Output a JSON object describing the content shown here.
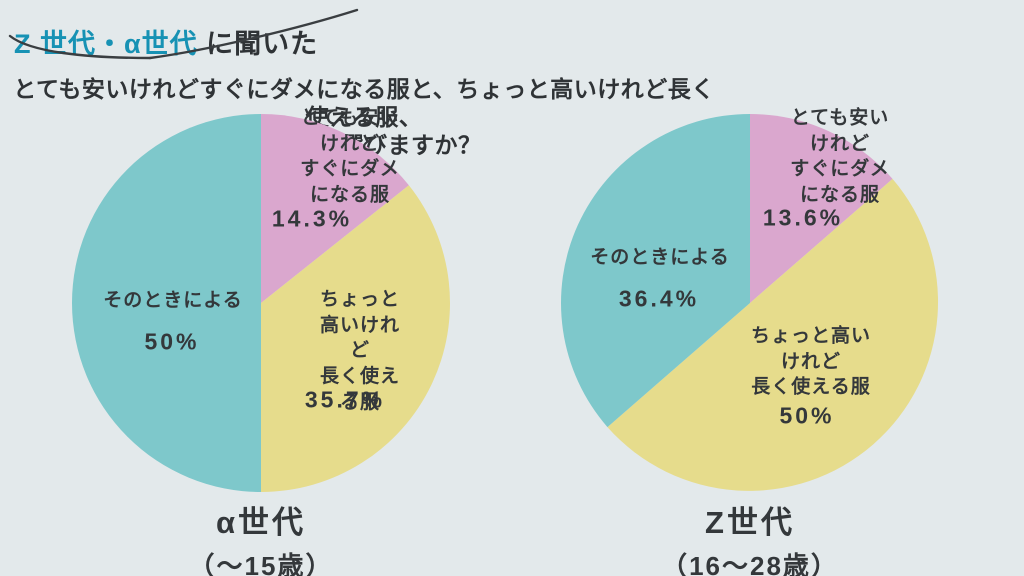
{
  "page": {
    "background_color": "#E3E9EB",
    "text_color": "#2F3336",
    "accent_color": "#1792B4"
  },
  "header": {
    "title_highlight": "Z 世代・α世代",
    "title_suffix": " に聞いた",
    "question_line1": "とても安いけれどすぐにダメになる服と、ちょっと高いけれど長く使える服、",
    "question_line2": "どちらを選びますか？"
  },
  "chart_data": [
    {
      "type": "pie",
      "title": "α世代",
      "subtitle": "（〜15歳）",
      "unit": "%",
      "start_angle": "12 o'clock",
      "direction": "clockwise",
      "slices": [
        {
          "label": "とても安いけれど\nすぐにダメになる服",
          "value": 14.3,
          "value_label": "14.3%",
          "color": "#DAA7CE"
        },
        {
          "label": "ちょっと高いけれど\n長く使える服",
          "value": 35.7,
          "value_label": "35.7%",
          "color": "#E6DC8C"
        },
        {
          "label": "そのときによる",
          "value": 50,
          "value_label": "50%",
          "color": "#7EC8CB"
        }
      ]
    },
    {
      "type": "pie",
      "title": "Z世代",
      "subtitle": "（16〜28歳）",
      "unit": "%",
      "start_angle": "12 o'clock",
      "direction": "clockwise",
      "slices": [
        {
          "label": "とても安いけれど\nすぐにダメになる服",
          "value": 13.6,
          "value_label": "13.6%",
          "color": "#DAA7CE"
        },
        {
          "label": "ちょっと高いけれど\n長く使える服",
          "value": 50,
          "value_label": "50%",
          "color": "#E6DC8C"
        },
        {
          "label": "そのときによる",
          "value": 36.4,
          "value_label": "36.4%",
          "color": "#7EC8CB"
        }
      ]
    }
  ]
}
